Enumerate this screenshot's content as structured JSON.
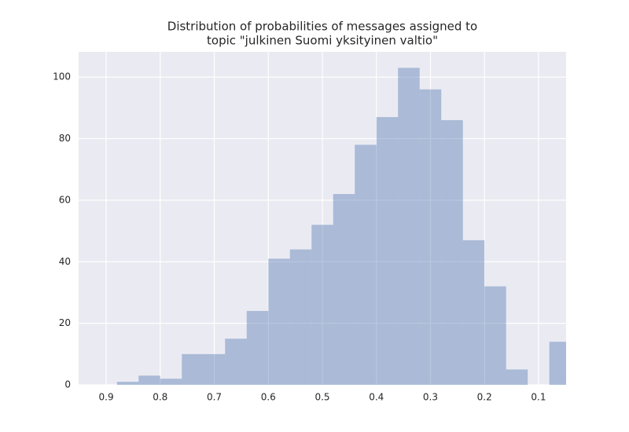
{
  "chart_data": {
    "type": "histogram",
    "title": [
      "Distribution of probabilities of messages assigned to",
      "topic \"julkinen Suomi yksityinen valtio\""
    ],
    "bins": [
      0.04,
      0.08,
      0.12,
      0.16,
      0.2,
      0.24,
      0.28,
      0.32,
      0.36,
      0.4,
      0.44,
      0.48,
      0.52,
      0.56,
      0.6,
      0.64,
      0.68,
      0.72,
      0.76,
      0.8,
      0.84,
      0.88
    ],
    "counts": [
      14,
      0,
      5,
      32,
      47,
      86,
      96,
      103,
      87,
      78,
      62,
      52,
      44,
      41,
      24,
      15,
      10,
      10,
      2,
      3,
      1
    ],
    "color": "#4c72b0",
    "alpha": 0.4,
    "xlim": [
      0.951,
      0.049
    ],
    "xticks": [
      0.9,
      0.8,
      0.7,
      0.6,
      0.5,
      0.4,
      0.3,
      0.2,
      0.1
    ],
    "ylim": [
      0,
      108.2
    ],
    "yticks": [
      0,
      20,
      40,
      60,
      80,
      100
    ],
    "grid": true
  }
}
